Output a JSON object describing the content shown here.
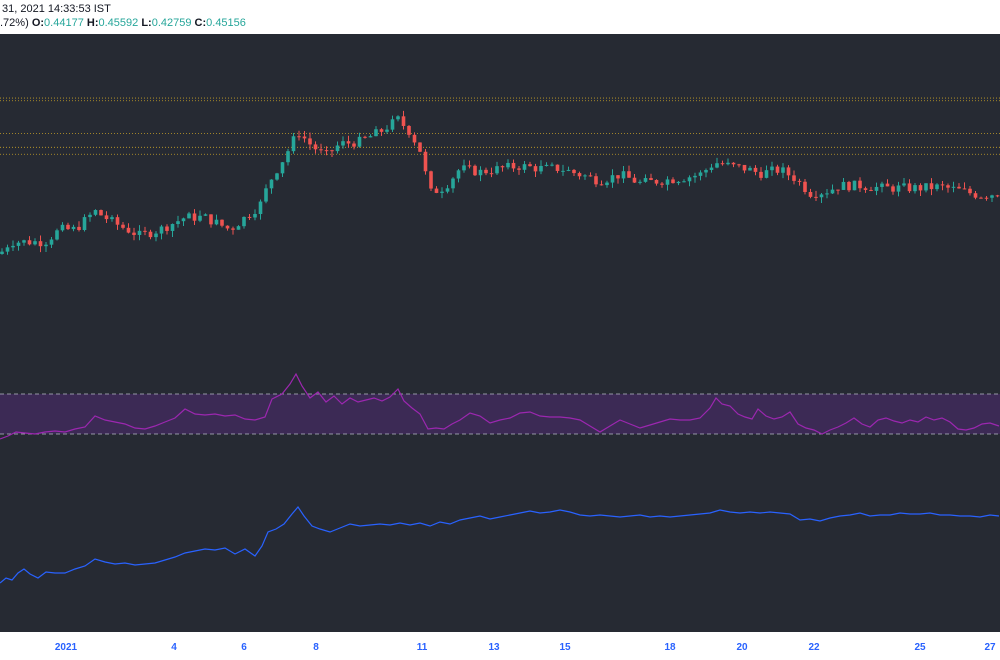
{
  "header": {
    "datetime": "31, 2021 14:33:53 IST",
    "change_pct": ".72%)",
    "open_label": "O:",
    "open_value": "0.44177",
    "high_label": "H:",
    "high_value": "0.45592",
    "low_label": "L:",
    "low_value": "0.42759",
    "close_label": "C:",
    "close_value": "0.45156"
  },
  "colors": {
    "background": "#262a33",
    "up": "#26a69a",
    "down": "#ef5350",
    "rsi_line": "#9c27b0",
    "rsi_band": "#3c2a55",
    "obv_line": "#2962ff",
    "level_line": "#c9a227",
    "axis_text": "#2962ff"
  },
  "chart_data": [
    {
      "type": "candlestick",
      "x_ticks": [
        "2021",
        "4",
        "6",
        "8",
        "11",
        "13",
        "15",
        "18",
        "20",
        "22",
        "25",
        "27"
      ],
      "horizontal_levels": [
        0.5176,
        0.5154,
        0.4885,
        0.4773,
        0.4716
      ],
      "y_range": [
        0.3,
        0.57
      ],
      "anchor_points": [
        [
          0,
          0.39
        ],
        [
          10,
          0.4
        ],
        [
          30,
          0.4
        ],
        [
          45,
          0.4
        ],
        [
          60,
          0.41
        ],
        [
          75,
          0.41
        ],
        [
          95,
          0.425
        ],
        [
          115,
          0.415
        ],
        [
          140,
          0.405
        ],
        [
          160,
          0.41
        ],
        [
          185,
          0.42
        ],
        [
          205,
          0.42
        ],
        [
          230,
          0.41
        ],
        [
          260,
          0.43
        ],
        [
          270,
          0.45
        ],
        [
          285,
          0.47
        ],
        [
          298,
          0.49
        ],
        [
          310,
          0.48
        ],
        [
          325,
          0.47
        ],
        [
          340,
          0.48
        ],
        [
          360,
          0.482
        ],
        [
          380,
          0.49
        ],
        [
          398,
          0.5
        ],
        [
          410,
          0.49
        ],
        [
          420,
          0.475
        ],
        [
          430,
          0.44
        ],
        [
          445,
          0.445
        ],
        [
          460,
          0.46
        ],
        [
          480,
          0.457
        ],
        [
          500,
          0.46
        ],
        [
          520,
          0.462
        ],
        [
          540,
          0.46
        ],
        [
          560,
          0.46
        ],
        [
          580,
          0.455
        ],
        [
          600,
          0.45
        ],
        [
          620,
          0.455
        ],
        [
          640,
          0.448
        ],
        [
          660,
          0.45
        ],
        [
          680,
          0.452
        ],
        [
          700,
          0.455
        ],
        [
          715,
          0.465
        ],
        [
          730,
          0.462
        ],
        [
          745,
          0.46
        ],
        [
          760,
          0.456
        ],
        [
          780,
          0.459
        ],
        [
          795,
          0.452
        ],
        [
          810,
          0.44
        ],
        [
          825,
          0.441
        ],
        [
          840,
          0.446
        ],
        [
          860,
          0.446
        ],
        [
          880,
          0.444
        ],
        [
          900,
          0.444
        ],
        [
          920,
          0.444
        ],
        [
          940,
          0.445
        ],
        [
          960,
          0.442
        ],
        [
          980,
          0.438
        ],
        [
          999,
          0.44
        ]
      ]
    },
    {
      "type": "line",
      "name": "",
      "upper_band": 70,
      "lower_band": 30,
      "points": [
        [
          0,
          25
        ],
        [
          8,
          28
        ],
        [
          16,
          32
        ],
        [
          25,
          31
        ],
        [
          35,
          30
        ],
        [
          45,
          32
        ],
        [
          55,
          33
        ],
        [
          65,
          32
        ],
        [
          75,
          35
        ],
        [
          85,
          37
        ],
        [
          95,
          48
        ],
        [
          105,
          44
        ],
        [
          115,
          42
        ],
        [
          125,
          40
        ],
        [
          135,
          36
        ],
        [
          145,
          35
        ],
        [
          155,
          38
        ],
        [
          165,
          42
        ],
        [
          175,
          46
        ],
        [
          185,
          55
        ],
        [
          195,
          50
        ],
        [
          205,
          49
        ],
        [
          215,
          50
        ],
        [
          225,
          48
        ],
        [
          235,
          49
        ],
        [
          245,
          45
        ],
        [
          255,
          44
        ],
        [
          265,
          47
        ],
        [
          272,
          65
        ],
        [
          282,
          70
        ],
        [
          290,
          80
        ],
        [
          296,
          90
        ],
        [
          302,
          78
        ],
        [
          310,
          66
        ],
        [
          318,
          72
        ],
        [
          326,
          62
        ],
        [
          334,
          68
        ],
        [
          342,
          60
        ],
        [
          350,
          66
        ],
        [
          358,
          62
        ],
        [
          366,
          64
        ],
        [
          374,
          66
        ],
        [
          382,
          63
        ],
        [
          390,
          67
        ],
        [
          398,
          75
        ],
        [
          404,
          63
        ],
        [
          412,
          56
        ],
        [
          420,
          50
        ],
        [
          428,
          35
        ],
        [
          436,
          36
        ],
        [
          444,
          35
        ],
        [
          452,
          40
        ],
        [
          460,
          44
        ],
        [
          470,
          51
        ],
        [
          480,
          48
        ],
        [
          490,
          41
        ],
        [
          500,
          44
        ],
        [
          510,
          46
        ],
        [
          520,
          51
        ],
        [
          530,
          52
        ],
        [
          540,
          48
        ],
        [
          550,
          47
        ],
        [
          560,
          47
        ],
        [
          570,
          46
        ],
        [
          580,
          44
        ],
        [
          590,
          38
        ],
        [
          600,
          32
        ],
        [
          610,
          38
        ],
        [
          620,
          44
        ],
        [
          630,
          40
        ],
        [
          640,
          36
        ],
        [
          650,
          39
        ],
        [
          660,
          42
        ],
        [
          670,
          45
        ],
        [
          680,
          44
        ],
        [
          690,
          44
        ],
        [
          700,
          46
        ],
        [
          710,
          56
        ],
        [
          716,
          66
        ],
        [
          722,
          60
        ],
        [
          730,
          58
        ],
        [
          738,
          50
        ],
        [
          745,
          47
        ],
        [
          752,
          45
        ],
        [
          758,
          55
        ],
        [
          766,
          48
        ],
        [
          774,
          45
        ],
        [
          782,
          47
        ],
        [
          790,
          52
        ],
        [
          798,
          40
        ],
        [
          806,
          36
        ],
        [
          814,
          34
        ],
        [
          822,
          30
        ],
        [
          830,
          34
        ],
        [
          838,
          37
        ],
        [
          846,
          41
        ],
        [
          854,
          46
        ],
        [
          862,
          40
        ],
        [
          870,
          37
        ],
        [
          878,
          44
        ],
        [
          886,
          46
        ],
        [
          894,
          43
        ],
        [
          902,
          41
        ],
        [
          910,
          44
        ],
        [
          918,
          42
        ],
        [
          926,
          47
        ],
        [
          934,
          44
        ],
        [
          942,
          46
        ],
        [
          950,
          42
        ],
        [
          958,
          35
        ],
        [
          966,
          34
        ],
        [
          974,
          36
        ],
        [
          982,
          40
        ],
        [
          990,
          41
        ],
        [
          999,
          38
        ]
      ]
    },
    {
      "type": "line",
      "name": "",
      "points": [
        [
          0,
          21
        ],
        [
          6,
          26
        ],
        [
          12,
          24
        ],
        [
          18,
          31
        ],
        [
          24,
          35
        ],
        [
          30,
          30
        ],
        [
          38,
          26
        ],
        [
          46,
          32
        ],
        [
          55,
          31
        ],
        [
          65,
          31
        ],
        [
          75,
          35
        ],
        [
          85,
          38
        ],
        [
          95,
          45
        ],
        [
          105,
          42
        ],
        [
          115,
          40
        ],
        [
          125,
          41
        ],
        [
          135,
          39
        ],
        [
          145,
          40
        ],
        [
          155,
          41
        ],
        [
          165,
          44
        ],
        [
          175,
          47
        ],
        [
          185,
          51
        ],
        [
          195,
          53
        ],
        [
          205,
          55
        ],
        [
          215,
          54
        ],
        [
          225,
          56
        ],
        [
          235,
          50
        ],
        [
          245,
          55
        ],
        [
          255,
          48
        ],
        [
          262,
          58
        ],
        [
          268,
          72
        ],
        [
          276,
          75
        ],
        [
          284,
          80
        ],
        [
          292,
          90
        ],
        [
          298,
          97
        ],
        [
          304,
          88
        ],
        [
          312,
          78
        ],
        [
          320,
          75
        ],
        [
          330,
          72
        ],
        [
          340,
          76
        ],
        [
          350,
          80
        ],
        [
          360,
          78
        ],
        [
          370,
          79
        ],
        [
          380,
          80
        ],
        [
          390,
          79
        ],
        [
          400,
          81
        ],
        [
          410,
          79
        ],
        [
          420,
          81
        ],
        [
          430,
          78
        ],
        [
          440,
          82
        ],
        [
          450,
          80
        ],
        [
          460,
          84
        ],
        [
          470,
          86
        ],
        [
          480,
          88
        ],
        [
          490,
          85
        ],
        [
          500,
          87
        ],
        [
          510,
          89
        ],
        [
          520,
          91
        ],
        [
          530,
          93
        ],
        [
          540,
          91
        ],
        [
          550,
          92
        ],
        [
          560,
          94
        ],
        [
          570,
          92
        ],
        [
          580,
          89
        ],
        [
          590,
          88
        ],
        [
          600,
          89
        ],
        [
          610,
          88
        ],
        [
          620,
          87
        ],
        [
          630,
          88
        ],
        [
          640,
          89
        ],
        [
          650,
          87
        ],
        [
          660,
          88
        ],
        [
          670,
          87
        ],
        [
          680,
          88
        ],
        [
          690,
          89
        ],
        [
          700,
          90
        ],
        [
          710,
          91
        ],
        [
          720,
          94
        ],
        [
          730,
          92
        ],
        [
          740,
          91
        ],
        [
          750,
          92
        ],
        [
          760,
          91
        ],
        [
          770,
          92
        ],
        [
          780,
          91
        ],
        [
          790,
          90
        ],
        [
          800,
          84
        ],
        [
          810,
          85
        ],
        [
          820,
          83
        ],
        [
          830,
          86
        ],
        [
          840,
          88
        ],
        [
          850,
          89
        ],
        [
          860,
          91
        ],
        [
          870,
          88
        ],
        [
          880,
          89
        ],
        [
          890,
          89
        ],
        [
          900,
          91
        ],
        [
          910,
          90
        ],
        [
          920,
          90
        ],
        [
          930,
          91
        ],
        [
          940,
          89
        ],
        [
          950,
          89
        ],
        [
          960,
          88
        ],
        [
          970,
          88
        ],
        [
          980,
          87
        ],
        [
          990,
          89
        ],
        [
          999,
          88
        ]
      ]
    }
  ]
}
